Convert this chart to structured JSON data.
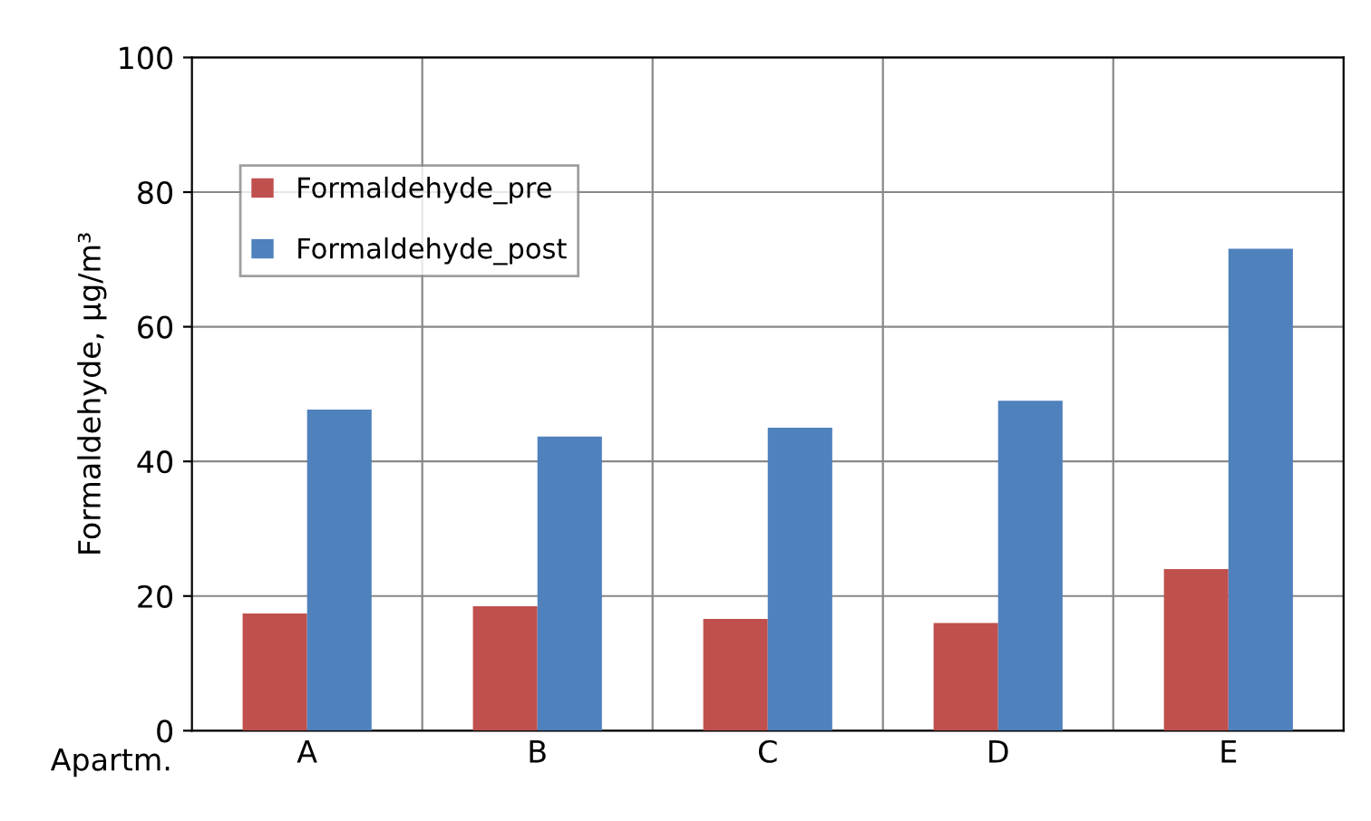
{
  "chart_data": {
    "type": "bar",
    "ylabel": "Formaldehyde, μg/m³",
    "xlabel": "Apartm.",
    "categories": [
      "A",
      "B",
      "C",
      "D",
      "E"
    ],
    "series": [
      {
        "name": "Formaldehyde_pre",
        "color": "#c0504d",
        "values": [
          17.4,
          18.5,
          16.6,
          16.0,
          24.0
        ]
      },
      {
        "name": "Formaldehyde_post",
        "color": "#4f81bd",
        "values": [
          47.7,
          43.7,
          45.0,
          49.0,
          71.6
        ]
      }
    ],
    "ylim": [
      0,
      100
    ],
    "yticks": [
      0,
      20,
      40,
      60,
      80,
      100
    ],
    "grid": true,
    "legend": "top left"
  }
}
